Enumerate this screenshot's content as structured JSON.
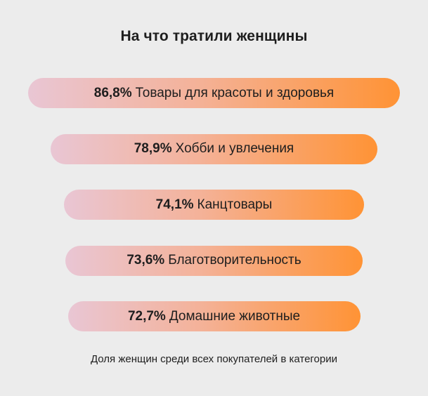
{
  "title": "На что тратили женщины",
  "footnote": "Доля женщин среди всех покупателей в категории",
  "colors": {
    "bar_start": "#e9c6d4",
    "bar_end": "#ff9335",
    "background": "#ececec"
  },
  "chart_data": {
    "type": "bar",
    "orientation": "horizontal",
    "title": "На что тратили женщины",
    "footnote": "Доля женщин среди всех покупателей в категории",
    "unit": "%",
    "categories": [
      "Товары для красоты и здоровья",
      "Хобби и увлечения",
      "Канцтовары",
      "Благотворительность",
      "Домашние животные"
    ],
    "values": [
      86.8,
      78.9,
      74.1,
      73.6,
      72.7
    ],
    "value_labels": [
      "86,8%",
      "78,9%",
      "74,1%",
      "73,6%",
      "72,7%"
    ]
  }
}
